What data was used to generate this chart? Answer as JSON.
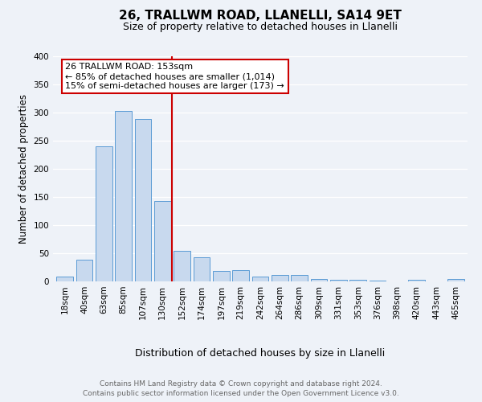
{
  "title": "26, TRALLWM ROAD, LLANELLI, SA14 9ET",
  "subtitle": "Size of property relative to detached houses in Llanelli",
  "xlabel": "Distribution of detached houses by size in Llanelli",
  "ylabel": "Number of detached properties",
  "bar_labels": [
    "18sqm",
    "40sqm",
    "63sqm",
    "85sqm",
    "107sqm",
    "130sqm",
    "152sqm",
    "174sqm",
    "197sqm",
    "219sqm",
    "242sqm",
    "264sqm",
    "286sqm",
    "309sqm",
    "331sqm",
    "353sqm",
    "376sqm",
    "398sqm",
    "420sqm",
    "443sqm",
    "465sqm"
  ],
  "bar_values": [
    8,
    38,
    240,
    303,
    288,
    143,
    55,
    43,
    18,
    20,
    9,
    11,
    11,
    5,
    3,
    3,
    1,
    0,
    3,
    0,
    4
  ],
  "bar_color": "#c8d9ee",
  "bar_edge_color": "#5b9bd5",
  "vline_color": "#cc0000",
  "ylim": [
    0,
    400
  ],
  "yticks": [
    0,
    50,
    100,
    150,
    200,
    250,
    300,
    350,
    400
  ],
  "annotation_title": "26 TRALLWM ROAD: 153sqm",
  "annotation_line1": "← 85% of detached houses are smaller (1,014)",
  "annotation_line2": "15% of semi-detached houses are larger (173) →",
  "annotation_box_color": "#ffffff",
  "annotation_box_edge_color": "#cc0000",
  "footer_line1": "Contains HM Land Registry data © Crown copyright and database right 2024.",
  "footer_line2": "Contains public sector information licensed under the Open Government Licence v3.0.",
  "bg_color": "#eef2f8",
  "plot_bg_color": "#eef2f8",
  "grid_color": "#ffffff",
  "title_fontsize": 11,
  "subtitle_fontsize": 9,
  "ylabel_fontsize": 8.5,
  "xlabel_fontsize": 9,
  "tick_fontsize": 7.5,
  "ann_fontsize": 8,
  "footer_fontsize": 6.5
}
